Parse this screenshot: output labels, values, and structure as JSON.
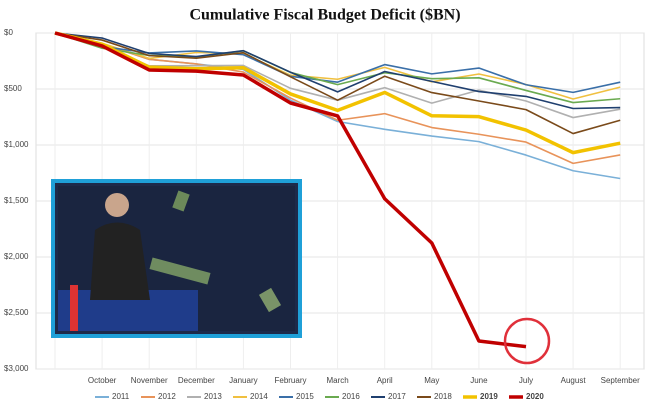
{
  "chart_data": {
    "type": "line",
    "title": "Cumulative Fiscal Budget Deficit ($BN)",
    "categories": [
      null,
      "October",
      "November",
      "December",
      "January",
      "February",
      "March",
      "April",
      "May",
      "June",
      "July",
      "August",
      "September"
    ],
    "ylim": [
      0,
      3000
    ],
    "y_inverted": true,
    "yticks": [
      {
        "value": 0,
        "label": "$0"
      },
      {
        "value": 500,
        "label": "$500"
      },
      {
        "value": 1000,
        "label": "$1,000"
      },
      {
        "value": 1500,
        "label": "$1,500"
      },
      {
        "value": 2000,
        "label": "$2,000"
      },
      {
        "value": 2500,
        "label": "$2,500"
      },
      {
        "value": 3000,
        "label": "$3,000"
      }
    ],
    "grid": true,
    "legend": "bottom",
    "series": [
      {
        "name": "2011",
        "color": "#7ab0d8",
        "values": [
          0,
          98,
          235,
          276,
          325,
          600,
          790,
          860,
          920,
          970,
          1090,
          1230,
          1299
        ]
      },
      {
        "name": "2012",
        "color": "#e8935a",
        "values": [
          0,
          98,
          235,
          276,
          349,
          581,
          779,
          720,
          844,
          904,
          974,
          1164,
          1089
        ]
      },
      {
        "name": "2013",
        "color": "#b0b0b0",
        "values": [
          0,
          120,
          293,
          292,
          290,
          494,
          600,
          488,
          626,
          510,
          607,
          755,
          680
        ]
      },
      {
        "name": "2014",
        "color": "#f0c040",
        "values": [
          0,
          92,
          227,
          174,
          184,
          377,
          413,
          307,
          436,
          366,
          460,
          589,
          483
        ]
      },
      {
        "name": "2015",
        "color": "#3a6fa8",
        "values": [
          0,
          122,
          178,
          160,
          194,
          387,
          439,
          282,
          365,
          313,
          462,
          530,
          439
        ]
      },
      {
        "name": "2016",
        "color": "#6aaa50",
        "values": [
          0,
          136,
          200,
          214,
          159,
          352,
          461,
          355,
          408,
          400,
          513,
          621,
          587
        ]
      },
      {
        "name": "2017",
        "color": "#1f3f6f",
        "values": [
          0,
          45,
          183,
          210,
          158,
          350,
          526,
          344,
          432,
          523,
          566,
          674,
          666
        ]
      },
      {
        "name": "2018",
        "color": "#7a4a1a",
        "values": [
          0,
          63,
          202,
          225,
          176,
          391,
          600,
          386,
          532,
          607,
          684,
          898,
          779
        ]
      },
      {
        "name": "2019",
        "color": "#f2c200",
        "bold": true,
        "values": [
          0,
          100,
          305,
          319,
          310,
          544,
          691,
          531,
          739,
          747,
          867,
          1068,
          984
        ]
      },
      {
        "name": "2020",
        "color": "#c00000",
        "bold": true,
        "values": [
          0,
          116,
          330,
          340,
          375,
          625,
          740,
          1480,
          1875,
          2750,
          2800,
          null,
          null
        ]
      }
    ]
  }
}
